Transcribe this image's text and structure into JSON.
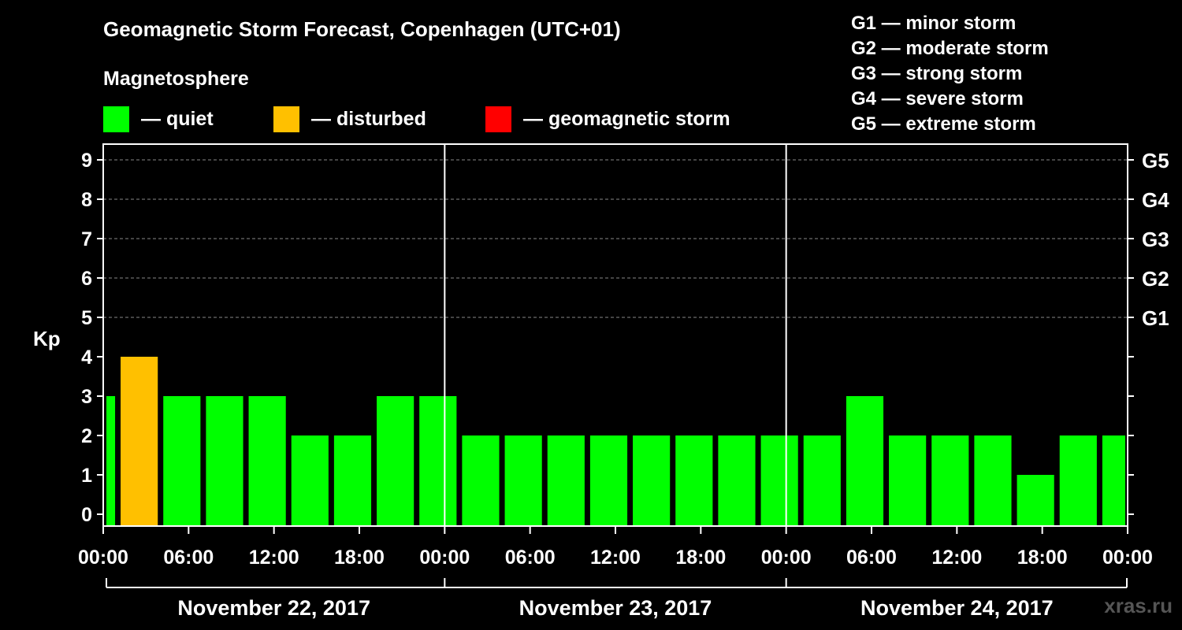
{
  "header": {
    "title": "Geomagnetic Storm Forecast, Copenhagen (UTC+01)",
    "subtitle": "Magnetosphere"
  },
  "legend": [
    {
      "label": "— quiet",
      "color": "#00ff00"
    },
    {
      "label": "— disturbed",
      "color": "#ffc000"
    },
    {
      "label": "— geomagnetic storm",
      "color": "#ff0000"
    }
  ],
  "storm_scale": [
    "G1 — minor storm",
    "G2 — moderate storm",
    "G3 — strong storm",
    "G4 — severe storm",
    "G5 — extreme storm"
  ],
  "watermark": "xras.ru",
  "chart_data": {
    "type": "bar",
    "ylabel": "Kp",
    "ylim": [
      -0.3,
      9.4
    ],
    "y_ticks": [
      0,
      1,
      2,
      3,
      4,
      5,
      6,
      7,
      8,
      9
    ],
    "right_ticks": [
      {
        "value": 5,
        "label": "G1"
      },
      {
        "value": 6,
        "label": "G2"
      },
      {
        "value": 7,
        "label": "G3"
      },
      {
        "value": 8,
        "label": "G4"
      },
      {
        "value": 9,
        "label": "G5"
      }
    ],
    "x_tick_labels": [
      "00:00",
      "06:00",
      "12:00",
      "18:00",
      "00:00",
      "06:00",
      "12:00",
      "18:00",
      "00:00",
      "06:00",
      "12:00",
      "18:00",
      "00:00"
    ],
    "dates": [
      "November 22, 2017",
      "November 23, 2017",
      "November 24, 2017"
    ],
    "x_range_hours": [
      0,
      72
    ],
    "grid": "dashed horizontal lines at Kp 5 to 9",
    "bars": [
      {
        "start_hour": 0,
        "kp": 3
      },
      {
        "start_hour": 1,
        "kp": 4
      },
      {
        "start_hour": 4,
        "kp": 3
      },
      {
        "start_hour": 7,
        "kp": 3
      },
      {
        "start_hour": 10,
        "kp": 3
      },
      {
        "start_hour": 13,
        "kp": 2
      },
      {
        "start_hour": 16,
        "kp": 2
      },
      {
        "start_hour": 19,
        "kp": 3
      },
      {
        "start_hour": 22,
        "kp": 3
      },
      {
        "start_hour": 25,
        "kp": 2
      },
      {
        "start_hour": 28,
        "kp": 2
      },
      {
        "start_hour": 31,
        "kp": 2
      },
      {
        "start_hour": 34,
        "kp": 2
      },
      {
        "start_hour": 37,
        "kp": 2
      },
      {
        "start_hour": 40,
        "kp": 2
      },
      {
        "start_hour": 43,
        "kp": 2
      },
      {
        "start_hour": 46,
        "kp": 2
      },
      {
        "start_hour": 49,
        "kp": 2
      },
      {
        "start_hour": 52,
        "kp": 3
      },
      {
        "start_hour": 55,
        "kp": 2
      },
      {
        "start_hour": 58,
        "kp": 2
      },
      {
        "start_hour": 61,
        "kp": 2
      },
      {
        "start_hour": 64,
        "kp": 1
      },
      {
        "start_hour": 67,
        "kp": 2
      },
      {
        "start_hour": 70,
        "kp": 2
      }
    ],
    "bar_colors": {
      "quiet": "#00ff00",
      "disturbed": "#ffc000",
      "storm": "#ff0000"
    }
  }
}
